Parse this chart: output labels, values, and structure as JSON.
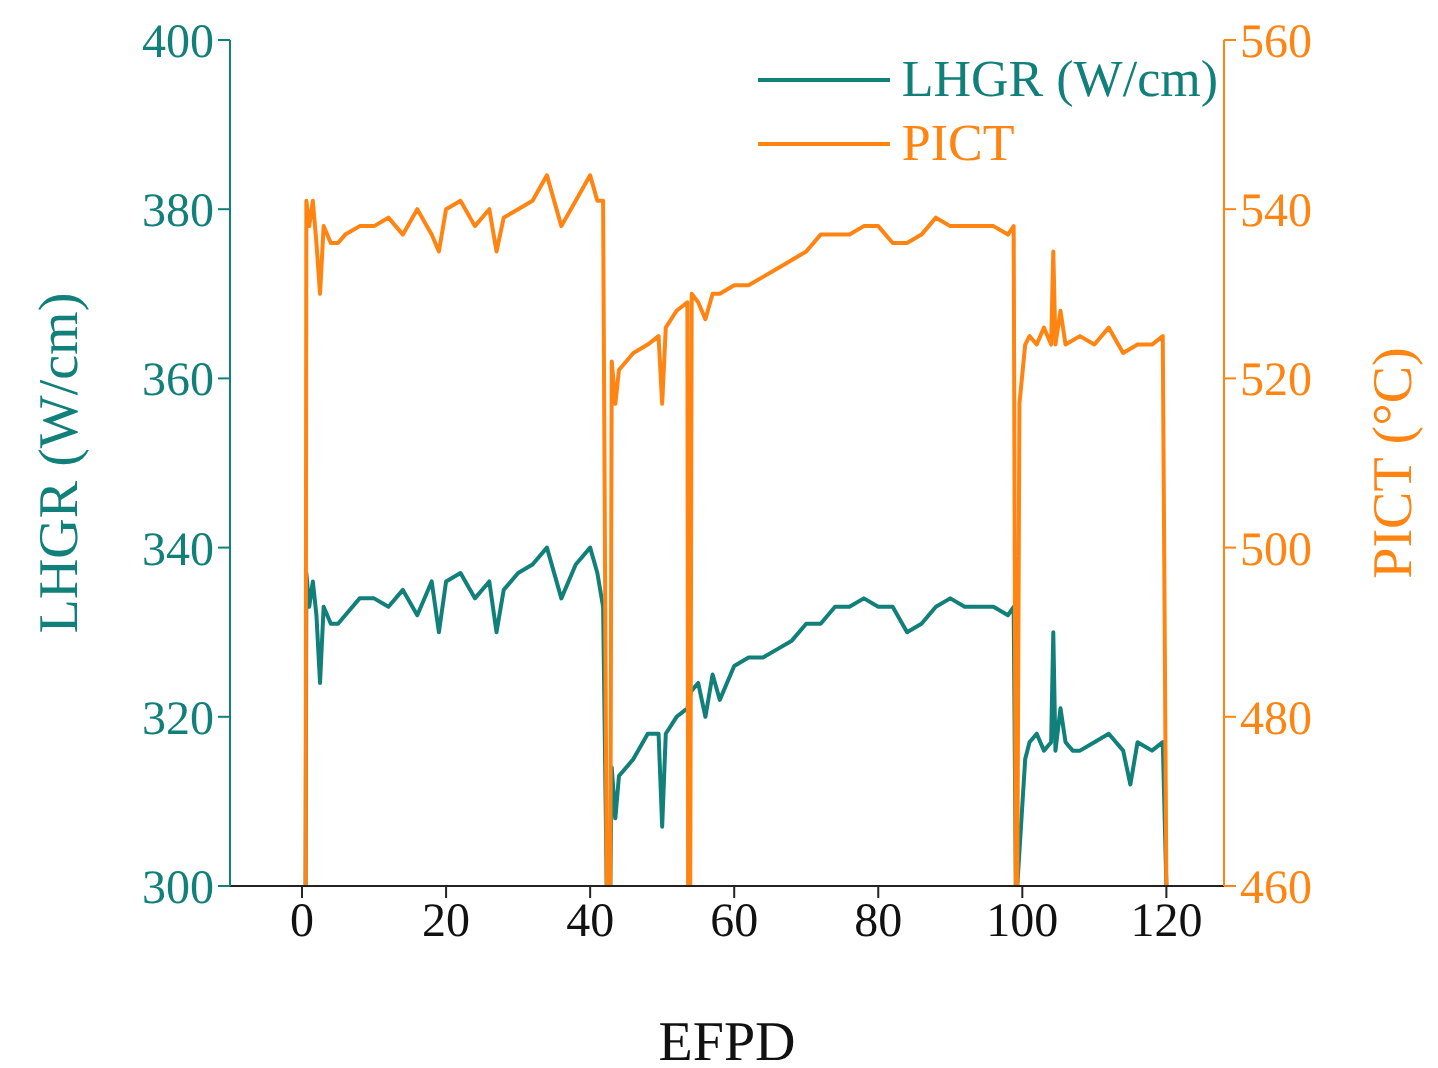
{
  "chart_data": {
    "type": "line",
    "xlabel": "EFPD",
    "ylabel": "LHGR (W/cm)",
    "y2label": "PICT (°C)",
    "xlim": [
      -10,
      128
    ],
    "xticks": [
      0,
      20,
      40,
      60,
      80,
      100,
      120
    ],
    "ylim": [
      300,
      400
    ],
    "yticks": [
      300,
      320,
      340,
      360,
      380,
      400
    ],
    "y2lim": [
      460,
      560
    ],
    "y2ticks": [
      460,
      480,
      500,
      520,
      540,
      560
    ],
    "legend": "top right",
    "marker": "none",
    "line_style": "solid",
    "series": [
      {
        "name": "LHGR (W/cm)",
        "color": "#12807a",
        "x": [
          0.5,
          0.6,
          1,
          1.5,
          2,
          2.5,
          3,
          4,
          5,
          6,
          8,
          10,
          12,
          14,
          16,
          18,
          19,
          20,
          22,
          24,
          26,
          27,
          28,
          30,
          32,
          34,
          36,
          38,
          40,
          41,
          41.8,
          42.3,
          42.8,
          43,
          43.5,
          44,
          46,
          48,
          49.5,
          50,
          50.5,
          52,
          53.5,
          54,
          55,
          56,
          57,
          58,
          60,
          62,
          64,
          66,
          68,
          70,
          72,
          74,
          76,
          78,
          80,
          82,
          84,
          86,
          88,
          90,
          92,
          94,
          96,
          98,
          98.8,
          99.1,
          99.3,
          100.4,
          101,
          102,
          103,
          104,
          104.3,
          104.6,
          105.3,
          106,
          107,
          108,
          110,
          112,
          114,
          115,
          116,
          118,
          119.5,
          120
        ],
        "values": [
          300,
          337,
          333,
          336,
          332,
          324,
          333,
          331,
          331,
          332,
          334,
          334,
          333,
          335,
          332,
          336,
          330,
          336,
          337,
          334,
          336,
          330,
          335,
          337,
          338,
          340,
          334,
          338,
          340,
          337,
          333,
          300,
          300,
          314,
          308,
          313,
          315,
          318,
          318,
          307,
          318,
          320,
          321,
          323,
          324,
          320,
          325,
          322,
          326,
          327,
          327,
          328,
          329,
          331,
          331,
          333,
          333,
          334,
          333,
          333,
          330,
          331,
          333,
          334,
          333,
          333,
          333,
          332,
          333,
          300,
          300,
          315,
          317,
          318,
          316,
          317,
          330,
          316,
          321,
          317,
          316,
          316,
          317,
          318,
          316,
          312,
          317,
          316,
          317,
          300
        ]
      },
      {
        "name": "PICT",
        "color": "#ff8412",
        "axis": "y2",
        "x": [
          0.5,
          0.6,
          1,
          1.5,
          2,
          2.5,
          3,
          4,
          5,
          6,
          8,
          10,
          12,
          14,
          16,
          18,
          19,
          20,
          22,
          24,
          26,
          27,
          28,
          30,
          32,
          34,
          36,
          38,
          40,
          41,
          41.8,
          42.3,
          42.8,
          43,
          43.5,
          44,
          46,
          48,
          49.5,
          50,
          50.5,
          52,
          53.5,
          53.6,
          53.9,
          54.1,
          55,
          56,
          57,
          58,
          60,
          62,
          64,
          66,
          68,
          70,
          72,
          74,
          76,
          78,
          80,
          82,
          84,
          86,
          88,
          90,
          92,
          94,
          96,
          98,
          98.8,
          99.1,
          99.3,
          99.6,
          100.4,
          101,
          102,
          103,
          104,
          104.3,
          104.6,
          105.3,
          106,
          108,
          110,
          112,
          114,
          116,
          118,
          119.5,
          120
        ],
        "values": [
          460,
          541,
          538,
          541,
          536,
          530,
          538,
          536,
          536,
          537,
          538,
          538,
          539,
          537,
          540,
          537,
          535,
          540,
          541,
          538,
          540,
          535,
          539,
          540,
          541,
          544,
          538,
          541,
          544,
          541,
          541,
          460,
          460,
          522,
          517,
          521,
          523,
          524,
          525,
          517,
          526,
          528,
          529,
          460,
          460,
          530,
          529,
          527,
          530,
          530,
          531,
          531,
          532,
          533,
          534,
          535,
          537,
          537,
          537,
          538,
          538,
          536,
          536,
          537,
          539,
          538,
          538,
          538,
          538,
          537,
          538,
          460,
          460,
          517,
          524,
          525,
          524,
          526,
          524,
          535,
          524,
          528,
          524,
          525,
          524,
          526,
          523,
          524,
          524,
          525,
          460
        ]
      }
    ]
  }
}
